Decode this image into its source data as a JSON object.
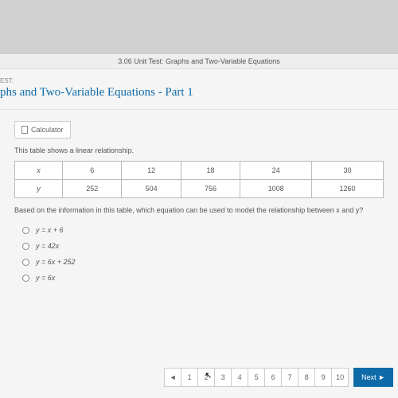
{
  "header": {
    "breadcrumb": "3.06 Unit Test: Graphs and Two-Variable Equations",
    "test_label": "EST:",
    "unit_title": "phs and Two-Variable Equations - Part 1"
  },
  "toolbar": {
    "calculator_label": "Calculator"
  },
  "question": {
    "intro": "This table shows a linear relationship.",
    "table": {
      "row_headers": [
        "x",
        "y"
      ],
      "columns": [
        "6",
        "12",
        "18",
        "24",
        "30"
      ],
      "rows": [
        [
          "252",
          "504",
          "756",
          "1008",
          "1260"
        ]
      ]
    },
    "prompt2": "Based on the information in this table, which equation can be used to model the relationship between x and y?",
    "options": [
      "y = x + 6",
      "y = 42x",
      "y = 6x + 252",
      "y = 6x"
    ]
  },
  "pager": {
    "prev": "◄",
    "pages": [
      "1",
      "2",
      "3",
      "4",
      "5",
      "6",
      "7",
      "8",
      "9",
      "10"
    ],
    "current_index": 1,
    "next_label": "Next ►"
  }
}
